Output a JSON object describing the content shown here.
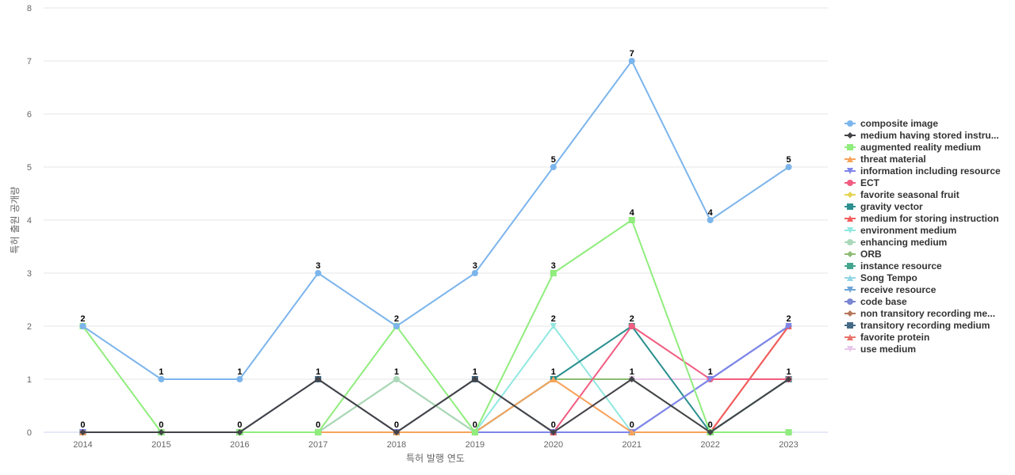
{
  "chart_data": {
    "type": "line",
    "xlabel": "특허 발행 연도",
    "ylabel": "특허 출원 공개량",
    "ylim": [
      0,
      8
    ],
    "yticks": [
      0,
      1,
      2,
      3,
      4,
      5,
      6,
      7,
      8
    ],
    "grid": "horizontal",
    "legend_position": "right",
    "x": [
      "2014",
      "2015",
      "2016",
      "2017",
      "2018",
      "2019",
      "2020",
      "2021",
      "2022",
      "2023"
    ],
    "series": [
      {
        "name": "composite image",
        "color": "#7cb5ec",
        "marker": "circle",
        "values": [
          2,
          1,
          1,
          3,
          2,
          3,
          5,
          7,
          4,
          5
        ]
      },
      {
        "name": "medium having stored instru...",
        "color": "#434348",
        "marker": "diamond",
        "values": [
          0,
          0,
          0,
          1,
          0,
          1,
          0,
          1,
          0,
          1
        ]
      },
      {
        "name": "augmented reality medium",
        "color": "#90ed7d",
        "marker": "square",
        "values": [
          2,
          0,
          0,
          0,
          2,
          0,
          3,
          4,
          0,
          0
        ]
      },
      {
        "name": "threat material",
        "color": "#f7a35c",
        "marker": "triangle",
        "values": [
          0,
          0,
          0,
          0,
          0,
          0,
          1,
          0,
          0,
          0
        ]
      },
      {
        "name": "information including resource",
        "color": "#8085e9",
        "marker": "triangle-down",
        "values": [
          0,
          0,
          0,
          0,
          0,
          0,
          0,
          0,
          1,
          2
        ]
      },
      {
        "name": "ECT",
        "color": "#f15c80",
        "marker": "circle",
        "values": [
          0,
          0,
          0,
          0,
          0,
          0,
          0,
          2,
          1,
          1
        ]
      },
      {
        "name": "favorite seasonal fruit",
        "color": "#e4d354",
        "marker": "diamond",
        "values": [
          0,
          0,
          0,
          0,
          0,
          0,
          0,
          0,
          0,
          0
        ]
      },
      {
        "name": "gravity vector",
        "color": "#2b908f",
        "marker": "square",
        "values": [
          0,
          0,
          0,
          0,
          0,
          0,
          1,
          2,
          0,
          1
        ]
      },
      {
        "name": "medium for storing instruction",
        "color": "#f45b5b",
        "marker": "triangle",
        "values": [
          0,
          0,
          0,
          0,
          0,
          0,
          0,
          0,
          0,
          2
        ]
      },
      {
        "name": "environment medium",
        "color": "#91e8e1",
        "marker": "triangle-down",
        "values": [
          0,
          0,
          0,
          0,
          0,
          0,
          2,
          0,
          0,
          0
        ]
      },
      {
        "name": "enhancing medium",
        "color": "#aad8b8",
        "marker": "circle",
        "values": [
          0,
          0,
          0,
          0,
          1,
          0,
          0,
          0,
          0,
          0
        ]
      },
      {
        "name": "ORB",
        "color": "#8bbc74",
        "marker": "diamond",
        "values": [
          0,
          0,
          0,
          0,
          1,
          0,
          1,
          1,
          0,
          1
        ]
      },
      {
        "name": "instance resource",
        "color": "#44a58f",
        "marker": "square",
        "values": [
          0,
          0,
          0,
          0,
          0,
          0,
          0,
          0,
          0,
          0
        ]
      },
      {
        "name": "Song Tempo",
        "color": "#92d6e6",
        "marker": "triangle",
        "values": [
          0,
          0,
          0,
          0,
          0,
          0,
          0,
          0,
          0,
          0
        ]
      },
      {
        "name": "receive resource",
        "color": "#6fa4d6",
        "marker": "triangle-down",
        "values": [
          0,
          0,
          0,
          0,
          0,
          0,
          0,
          0,
          1,
          2
        ]
      },
      {
        "name": "code base",
        "color": "#7b86d2",
        "marker": "circle",
        "values": [
          0,
          0,
          0,
          0,
          0,
          0,
          0,
          0,
          1,
          2
        ]
      },
      {
        "name": "non transitory recording me...",
        "color": "#b7775a",
        "marker": "diamond",
        "values": [
          0,
          0,
          0,
          0,
          0,
          0,
          0,
          0,
          0,
          2
        ]
      },
      {
        "name": "transitory recording medium",
        "color": "#456a86",
        "marker": "square",
        "values": [
          0,
          0,
          0,
          1,
          0,
          1,
          0,
          0,
          0,
          1
        ]
      },
      {
        "name": "favorite protein",
        "color": "#e8736b",
        "marker": "triangle",
        "values": [
          0,
          0,
          0,
          0,
          0,
          0,
          0,
          0,
          0,
          0
        ]
      },
      {
        "name": "use medium",
        "color": "#e8c7ea",
        "marker": "triangle-down",
        "values": [
          0,
          0,
          0,
          0,
          0,
          0,
          0,
          1,
          1,
          1
        ]
      }
    ],
    "data_labels": [
      2,
      1,
      1,
      3,
      2,
      3,
      5,
      7,
      4,
      5,
      0,
      0,
      0,
      1,
      0,
      1,
      0,
      1,
      0,
      1,
      2,
      0,
      0,
      0,
      2,
      0,
      3,
      4,
      0,
      0,
      0,
      0,
      0,
      0,
      1,
      0,
      0,
      0,
      2,
      0,
      1,
      2,
      1,
      1,
      2
    ]
  }
}
